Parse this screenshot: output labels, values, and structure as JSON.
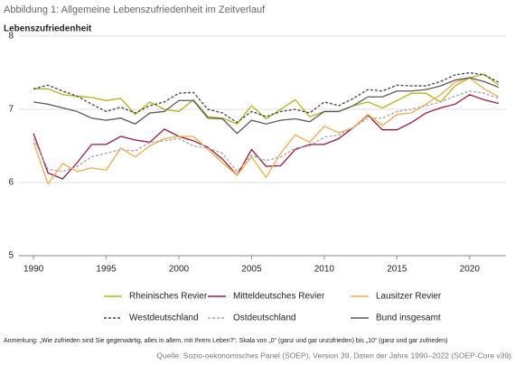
{
  "chart_data": {
    "type": "line",
    "title": "Abbildung 1: Allgemeine Lebenszufriedenheit im Zeitverlauf",
    "y_label": "Lebenszufriedenheit",
    "x": [
      1990,
      1991,
      1992,
      1993,
      1994,
      1995,
      1996,
      1997,
      1998,
      1999,
      2000,
      2001,
      2002,
      2003,
      2004,
      2005,
      2006,
      2007,
      2008,
      2009,
      2010,
      2011,
      2012,
      2013,
      2014,
      2015,
      2016,
      2017,
      2018,
      2019,
      2020,
      2021,
      2022
    ],
    "xlim": [
      1989,
      2022.5
    ],
    "xticks": [
      1990,
      1995,
      2000,
      2005,
      2010,
      2015,
      2020
    ],
    "ylim": [
      5,
      8
    ],
    "yticks": [
      5,
      6,
      7,
      8
    ],
    "grid": true,
    "series": [
      {
        "name": "Rheinisches Revier",
        "color": "#b3b512",
        "dashed": false,
        "values": [
          7.28,
          7.28,
          7.2,
          7.18,
          7.16,
          7.12,
          7.15,
          6.93,
          7.1,
          7.0,
          6.97,
          7.13,
          6.9,
          6.88,
          6.8,
          7.05,
          6.87,
          7.0,
          7.13,
          6.9,
          6.97,
          6.97,
          7.05,
          7.1,
          7.02,
          7.12,
          7.22,
          7.22,
          7.1,
          7.32,
          7.43,
          7.48,
          7.33
        ]
      },
      {
        "name": "Mitteldeutsches Revier",
        "color": "#a0173a",
        "dashed": false,
        "values": [
          6.67,
          6.13,
          6.05,
          6.27,
          6.52,
          6.52,
          6.63,
          6.58,
          6.55,
          6.73,
          6.63,
          6.57,
          6.48,
          6.32,
          6.1,
          6.45,
          6.22,
          6.23,
          6.45,
          6.52,
          6.52,
          6.6,
          6.75,
          6.92,
          6.72,
          6.72,
          6.82,
          6.95,
          7.02,
          7.07,
          7.2,
          7.13,
          7.08
        ]
      },
      {
        "name": "Lausitzer Revier",
        "color": "#f5aa45",
        "dashed": false,
        "values": [
          6.55,
          5.98,
          6.26,
          6.15,
          6.2,
          6.17,
          6.47,
          6.35,
          6.5,
          6.6,
          6.63,
          6.63,
          6.45,
          6.27,
          6.1,
          6.35,
          6.07,
          6.4,
          6.65,
          6.55,
          6.77,
          6.68,
          6.75,
          6.93,
          6.78,
          6.93,
          6.95,
          7.07,
          7.2,
          7.37,
          7.43,
          7.28,
          7.17
        ]
      },
      {
        "name": "Westdeutschland",
        "color": "#444444",
        "dashed": true,
        "values": [
          7.28,
          7.33,
          7.25,
          7.18,
          7.07,
          6.97,
          7.03,
          6.95,
          7.05,
          7.1,
          7.22,
          7.23,
          7.0,
          6.95,
          6.82,
          6.97,
          6.9,
          6.97,
          7.0,
          6.95,
          7.1,
          7.05,
          7.15,
          7.27,
          7.25,
          7.33,
          7.32,
          7.32,
          7.38,
          7.47,
          7.5,
          7.47,
          7.37
        ]
      },
      {
        "name": "Ostdeutschland",
        "color": "#a6a6a6",
        "dashed": true,
        "values": [
          6.6,
          6.18,
          6.15,
          6.22,
          6.35,
          6.4,
          6.45,
          6.43,
          6.55,
          6.57,
          6.6,
          6.5,
          6.47,
          6.4,
          6.15,
          6.37,
          6.3,
          6.35,
          6.47,
          6.5,
          6.62,
          6.65,
          6.75,
          6.88,
          6.88,
          6.97,
          7.0,
          7.05,
          7.1,
          7.18,
          7.25,
          7.22,
          7.15
        ]
      },
      {
        "name": "Bund insgesamt",
        "color": "#595959",
        "dashed": false,
        "values": [
          7.1,
          7.07,
          7.02,
          6.97,
          6.88,
          6.85,
          6.88,
          6.8,
          6.95,
          6.97,
          7.12,
          7.12,
          6.88,
          6.87,
          6.67,
          6.85,
          6.8,
          6.85,
          6.87,
          6.83,
          6.97,
          6.97,
          7.05,
          7.17,
          7.17,
          7.25,
          7.25,
          7.27,
          7.32,
          7.4,
          7.43,
          7.38,
          7.3
        ]
      }
    ],
    "note": "Anmerkung: „Wie zufrieden sind Sie gegenwärtig, alles in allem, mit Ihrem Leben?“.  Skala von „0“ (ganz und gar unzufrieden) bis „10“ (ganz und gar zufrieden)",
    "source": "Quelle: Sozio-oekonomisches Panel (SOEP), Version 39, Daten der Jahre 1990–2022 (SOEP-Core v39)"
  }
}
